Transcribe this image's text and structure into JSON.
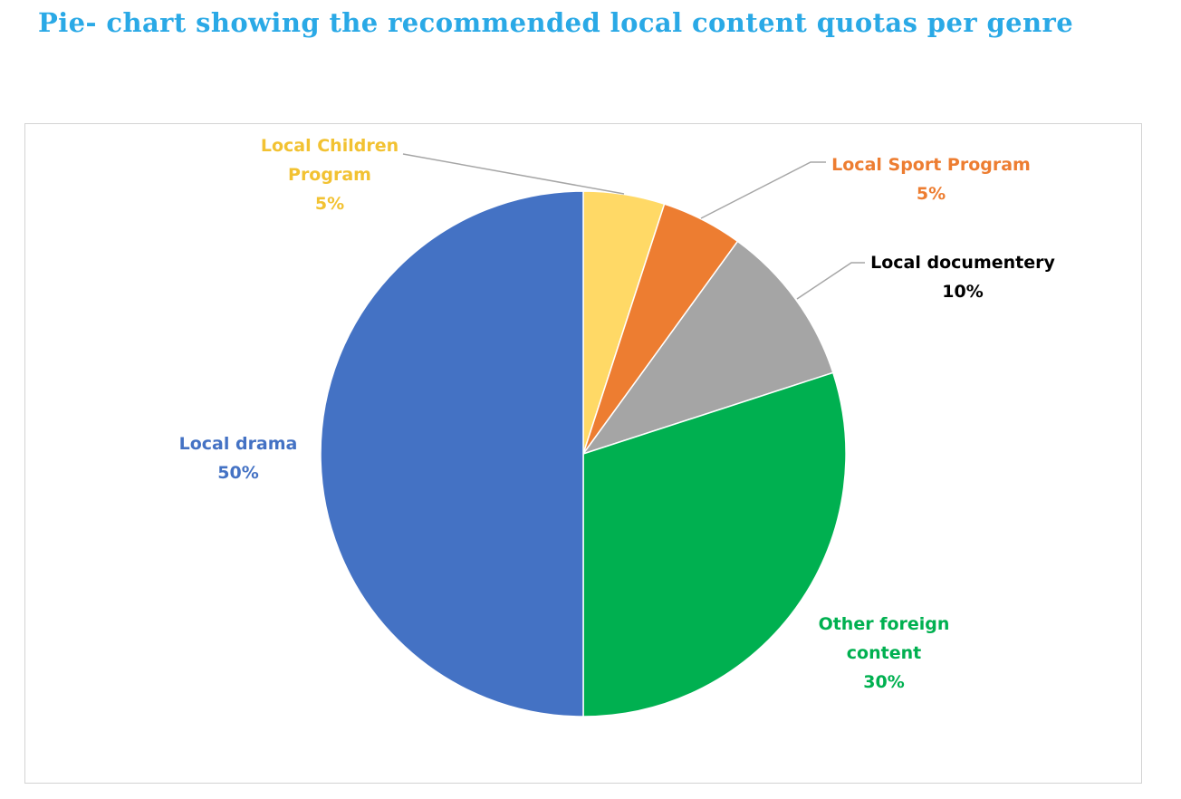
{
  "page": {
    "title": "Pie- chart showing the recommended local content quotas per genre"
  },
  "chart_data": {
    "type": "pie",
    "title": "Pie- chart showing the recommended local content quotas per genre",
    "slices": [
      {
        "label_lines": [
          "Local Children",
          "Program"
        ],
        "value": 5,
        "percent_label": "5%",
        "color": "#ffd966",
        "label_color": "#f2c232"
      },
      {
        "label_lines": [
          "Local Sport Program"
        ],
        "value": 5,
        "percent_label": "5%",
        "color": "#ed7d31",
        "label_color": "#ed7d31"
      },
      {
        "label_lines": [
          "Local documentery"
        ],
        "value": 10,
        "percent_label": "10%",
        "color": "#a5a5a5",
        "label_color": "#000000"
      },
      {
        "label_lines": [
          "Other foreign",
          "content"
        ],
        "value": 30,
        "percent_label": "30%",
        "color": "#00b050",
        "label_color": "#00b050"
      },
      {
        "label_lines": [
          "Local drama"
        ],
        "value": 50,
        "percent_label": "50%",
        "color": "#4472c4",
        "label_color": "#4472c4"
      }
    ],
    "start_angle": "12 o'clock",
    "direction": "clockwise",
    "legend": "none",
    "data_labels": "outside with leader lines for the small slices"
  }
}
